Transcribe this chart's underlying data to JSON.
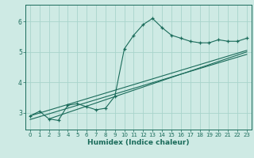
{
  "title": "",
  "xlabel": "Humidex (Indice chaleur)",
  "ylabel": "",
  "xlim": [
    -0.5,
    23.5
  ],
  "ylim": [
    2.45,
    6.55
  ],
  "yticks": [
    3,
    4,
    5,
    6
  ],
  "xticks": [
    0,
    1,
    2,
    3,
    4,
    5,
    6,
    7,
    8,
    9,
    10,
    11,
    12,
    13,
    14,
    15,
    16,
    17,
    18,
    19,
    20,
    21,
    22,
    23
  ],
  "bg_color": "#ceeae4",
  "grid_color": "#a8d4cc",
  "line_color": "#1a6b5a",
  "data_x": [
    0,
    1,
    2,
    3,
    4,
    5,
    6,
    7,
    8,
    9,
    10,
    11,
    12,
    13,
    14,
    15,
    16,
    17,
    18,
    19,
    20,
    21,
    22,
    23
  ],
  "data_y": [
    2.9,
    3.05,
    2.8,
    2.75,
    3.25,
    3.3,
    3.2,
    3.1,
    3.15,
    3.55,
    5.1,
    5.55,
    5.9,
    6.1,
    5.8,
    5.55,
    5.45,
    5.35,
    5.3,
    5.3,
    5.4,
    5.35,
    5.35,
    5.45
  ],
  "trend1_x": [
    0,
    23
  ],
  "trend1_y": [
    2.9,
    5.05
  ],
  "trend2_x": [
    0,
    23
  ],
  "trend2_y": [
    2.78,
    4.92
  ],
  "trend3_x": [
    2,
    23
  ],
  "trend3_y": [
    2.8,
    5.0
  ]
}
